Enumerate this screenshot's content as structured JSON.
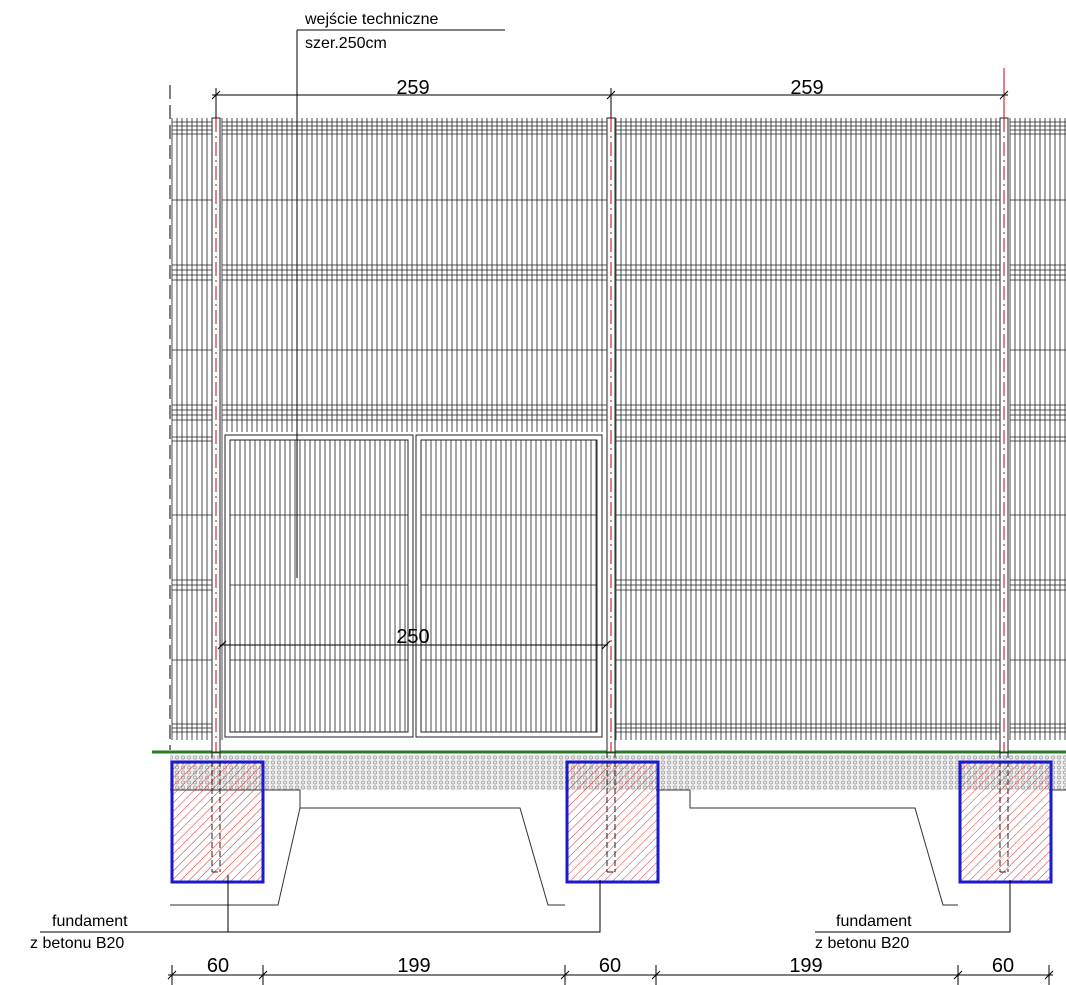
{
  "entrance_label": [
    "wejście techniczne",
    "szer.250cm"
  ],
  "top_dimensions": [
    259,
    259
  ],
  "gate_dimension": 250,
  "foundation_notes": [
    [
      "fundament",
      "z betonu B20"
    ],
    [
      "fundament",
      "z betonu B20"
    ]
  ],
  "bottom_dimensions": [
    60,
    199,
    60,
    199,
    60
  ]
}
